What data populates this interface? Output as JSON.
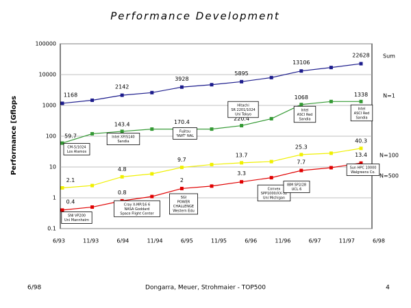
{
  "chart_data": {
    "type": "line",
    "title": "Performance Development",
    "ylabel": "Performance [Gflops",
    "categories": [
      "6/93",
      "11/93",
      "6/94",
      "11/94",
      "6/95",
      "11/95",
      "6/96",
      "11/96",
      "6/97",
      "11/97",
      "6/98"
    ],
    "yscale": "log",
    "ylim": [
      0.1,
      100000
    ],
    "yticks": [
      0.1,
      1,
      10,
      100,
      1000,
      10000,
      100000
    ],
    "grid": true,
    "series": [
      {
        "name": "Sum",
        "color": "#1c1c8c",
        "values": [
          1168,
          1470,
          2142,
          2600,
          3928,
          4700,
          5895,
          8000,
          13106,
          17000,
          22628
        ],
        "value_labels": [
          "1168",
          null,
          "2142",
          null,
          "3928",
          null,
          "5895",
          null,
          "13106",
          null,
          "22628"
        ]
      },
      {
        "name": "N=1",
        "color": "#339933",
        "values": [
          59.7,
          120,
          143.4,
          170,
          170.4,
          170,
          220.4,
          370,
          1068,
          1338,
          1338
        ],
        "value_labels": [
          "59.7",
          null,
          "143.4",
          null,
          "170.4",
          null,
          "220.4",
          null,
          "1068",
          null,
          "1338"
        ]
      },
      {
        "name": "N=100",
        "color": "#f0f000",
        "values": [
          2.1,
          2.5,
          4.8,
          6,
          9.7,
          12,
          13.7,
          15,
          25.3,
          28,
          40.3
        ],
        "value_labels": [
          "2.1",
          null,
          "4.8",
          null,
          "9.7",
          null,
          "13.7",
          null,
          "25.3",
          null,
          "40.3"
        ]
      },
      {
        "name": "N=500",
        "color": "#e00000",
        "values": [
          0.4,
          0.5,
          0.8,
          1.1,
          2,
          2.4,
          3.3,
          4.5,
          7.7,
          9.5,
          13.4
        ],
        "value_labels": [
          "0.4",
          null,
          "0.8",
          null,
          "2",
          null,
          "3.3",
          null,
          "7.7",
          null,
          "13.4"
        ]
      }
    ],
    "annotations": [
      [
        "CM-5/1024",
        "Los Alamos"
      ],
      [
        "Intel XP/S140",
        "Sandia"
      ],
      [
        "Fujitsu",
        "'NWT' NAL"
      ],
      [
        "Hitachi",
        "SR 2201/1024",
        "Uni Tokyo"
      ],
      [
        "Intel",
        "ASCI Red",
        "Sandia"
      ],
      [
        "Intel",
        "ASCI Red",
        "Sandia"
      ],
      [
        "SNI VP200",
        "Uni Mannheim"
      ],
      [
        "Cray X-MP/16 6",
        "NASA Goddard",
        "Space Flight Center"
      ],
      [
        "SGI",
        "POWER",
        "CHALLENGE",
        "Western Edu"
      ],
      [
        "Convex",
        "SPP1000/XX-32",
        "Uni Michigan"
      ],
      [
        "IBM SP2/28",
        "UCL 6"
      ],
      [
        "Sun HPC 10000",
        "Walgreens Co."
      ]
    ]
  },
  "footer": {
    "left": "6/98",
    "center": "Dongarra, Meuer, Strohmaier - TOP500",
    "right": "4"
  }
}
